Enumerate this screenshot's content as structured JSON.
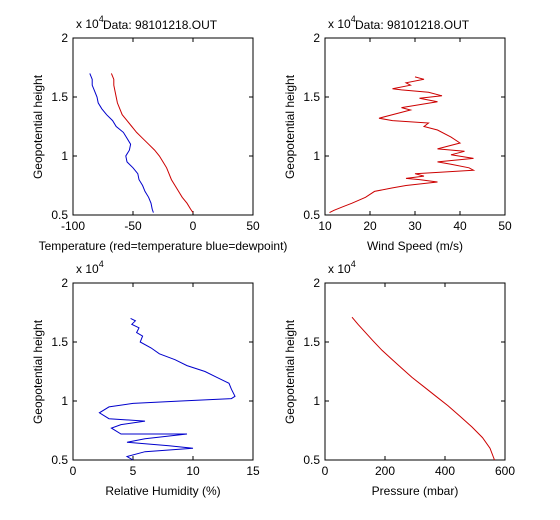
{
  "chart_data": [
    {
      "type": "line",
      "title": "Data: 98101218.OUT",
      "xlabel": "Temperature (red=temperature blue=dewpoint)",
      "ylabel": "Geopotential height",
      "y_multiplier": "x 10",
      "y_exponent": "4",
      "xlim": [
        -100,
        50
      ],
      "ylim": [
        0.5,
        2
      ],
      "xticks": [
        "-100",
        "-50",
        "0",
        "50"
      ],
      "yticks": [
        "0.5",
        "1",
        "1.5",
        "2"
      ],
      "grid": false,
      "series": [
        {
          "color": "#cc0000",
          "points": [
            [
              -68,
              1.7
            ],
            [
              -66,
              1.65
            ],
            [
              -66,
              1.6
            ],
            [
              -65,
              1.55
            ],
            [
              -64,
              1.5
            ],
            [
              -63,
              1.45
            ],
            [
              -61,
              1.4
            ],
            [
              -59,
              1.35
            ],
            [
              -55,
              1.3
            ],
            [
              -51,
              1.25
            ],
            [
              -47,
              1.2
            ],
            [
              -42,
              1.15
            ],
            [
              -37,
              1.1
            ],
            [
              -32,
              1.05
            ],
            [
              -28,
              1.0
            ],
            [
              -25,
              0.95
            ],
            [
              -22,
              0.9
            ],
            [
              -20,
              0.85
            ],
            [
              -18,
              0.8
            ],
            [
              -15,
              0.75
            ],
            [
              -12,
              0.7
            ],
            [
              -9,
              0.65
            ],
            [
              -5,
              0.6
            ],
            [
              -2,
              0.55
            ],
            [
              0,
              0.52
            ]
          ]
        },
        {
          "color": "#0000cc",
          "points": [
            [
              -86,
              1.7
            ],
            [
              -84,
              1.65
            ],
            [
              -84,
              1.6
            ],
            [
              -82,
              1.55
            ],
            [
              -80,
              1.5
            ],
            [
              -79,
              1.45
            ],
            [
              -76,
              1.4
            ],
            [
              -72,
              1.35
            ],
            [
              -67,
              1.3
            ],
            [
              -64,
              1.25
            ],
            [
              -58,
              1.2
            ],
            [
              -55,
              1.15
            ],
            [
              -52,
              1.1
            ],
            [
              -53,
              1.05
            ],
            [
              -56,
              1.0
            ],
            [
              -55,
              0.95
            ],
            [
              -50,
              0.9
            ],
            [
              -46,
              0.85
            ],
            [
              -45,
              0.8
            ],
            [
              -42,
              0.75
            ],
            [
              -40,
              0.7
            ],
            [
              -37,
              0.65
            ],
            [
              -35,
              0.6
            ],
            [
              -34,
              0.55
            ],
            [
              -33,
              0.52
            ]
          ]
        }
      ]
    },
    {
      "type": "line",
      "title": "Data: 98101218.OUT",
      "xlabel": "Wind Speed (m/s)",
      "ylabel": "Geopotential height",
      "y_multiplier": "x 10",
      "y_exponent": "4",
      "xlim": [
        10,
        50
      ],
      "ylim": [
        0.5,
        2
      ],
      "xticks": [
        "10",
        "20",
        "30",
        "40",
        "50"
      ],
      "yticks": [
        "0.5",
        "1",
        "1.5",
        "2"
      ],
      "grid": false,
      "series": [
        {
          "color": "#cc0000",
          "points": [
            [
              30,
              1.67
            ],
            [
              32,
              1.65
            ],
            [
              28,
              1.62
            ],
            [
              29,
              1.6
            ],
            [
              25,
              1.57
            ],
            [
              27,
              1.56
            ],
            [
              33,
              1.54
            ],
            [
              36,
              1.51
            ],
            [
              31,
              1.49
            ],
            [
              35,
              1.46
            ],
            [
              27,
              1.41
            ],
            [
              29,
              1.39
            ],
            [
              22,
              1.32
            ],
            [
              25,
              1.3
            ],
            [
              33,
              1.28
            ],
            [
              32,
              1.25
            ],
            [
              35,
              1.22
            ],
            [
              38,
              1.16
            ],
            [
              40,
              1.11
            ],
            [
              35,
              1.06
            ],
            [
              41,
              1.04
            ],
            [
              38,
              1.01
            ],
            [
              43,
              0.98
            ],
            [
              35,
              0.95
            ],
            [
              38,
              0.93
            ],
            [
              42,
              0.9
            ],
            [
              43,
              0.88
            ],
            [
              30,
              0.85
            ],
            [
              32,
              0.83
            ],
            [
              28,
              0.81
            ],
            [
              31,
              0.8
            ],
            [
              35,
              0.78
            ],
            [
              28,
              0.75
            ],
            [
              25,
              0.73
            ],
            [
              21,
              0.7
            ],
            [
              19,
              0.65
            ],
            [
              16,
              0.6
            ],
            [
              14,
              0.57
            ],
            [
              12,
              0.54
            ],
            [
              11,
              0.52
            ]
          ]
        }
      ]
    },
    {
      "type": "line",
      "title": "",
      "xlabel": "Relative Humidity (%)",
      "ylabel": "Geopotential height",
      "y_multiplier": "x 10",
      "y_exponent": "4",
      "xlim": [
        0,
        15
      ],
      "ylim": [
        0.5,
        2
      ],
      "xticks": [
        "0",
        "5",
        "10",
        "15"
      ],
      "yticks": [
        "0.5",
        "1",
        "1.5",
        "2"
      ],
      "grid": false,
      "series": [
        {
          "color": "#0000cc",
          "points": [
            [
              4.8,
              1.7
            ],
            [
              5.2,
              1.68
            ],
            [
              4.9,
              1.65
            ],
            [
              5.5,
              1.62
            ],
            [
              5.3,
              1.58
            ],
            [
              5.8,
              1.55
            ],
            [
              5.6,
              1.5
            ],
            [
              6.5,
              1.45
            ],
            [
              7.2,
              1.4
            ],
            [
              8.5,
              1.35
            ],
            [
              9.5,
              1.3
            ],
            [
              11,
              1.25
            ],
            [
              12,
              1.2
            ],
            [
              13,
              1.15
            ],
            [
              13.2,
              1.1
            ],
            [
              13.5,
              1.04
            ],
            [
              13.2,
              1.02
            ],
            [
              9,
              1.0
            ],
            [
              5,
              0.98
            ],
            [
              3,
              0.95
            ],
            [
              2.2,
              0.9
            ],
            [
              3,
              0.85
            ],
            [
              6,
              0.83
            ],
            [
              4,
              0.8
            ],
            [
              3.2,
              0.77
            ],
            [
              4,
              0.72
            ],
            [
              9.5,
              0.72
            ],
            [
              6,
              0.68
            ],
            [
              4.5,
              0.65
            ],
            [
              8,
              0.62
            ],
            [
              10,
              0.6
            ],
            [
              6,
              0.57
            ],
            [
              4.5,
              0.53
            ],
            [
              5,
              0.5
            ]
          ]
        }
      ]
    },
    {
      "type": "line",
      "title": "",
      "xlabel": "Pressure (mbar)",
      "ylabel": "Geopotential height",
      "y_multiplier": "x 10",
      "y_exponent": "4",
      "xlim": [
        0,
        600
      ],
      "ylim": [
        0.5,
        2
      ],
      "xticks": [
        "0",
        "200",
        "400",
        "600"
      ],
      "yticks": [
        "0.5",
        "1",
        "1.5",
        "2"
      ],
      "grid": false,
      "series": [
        {
          "color": "#cc0000",
          "points": [
            [
              90,
              1.71
            ],
            [
              110,
              1.65
            ],
            [
              135,
              1.58
            ],
            [
              160,
              1.51
            ],
            [
              190,
              1.43
            ],
            [
              220,
              1.36
            ],
            [
              255,
              1.28
            ],
            [
              290,
              1.2
            ],
            [
              330,
              1.12
            ],
            [
              370,
              1.04
            ],
            [
              410,
              0.96
            ],
            [
              450,
              0.87
            ],
            [
              490,
              0.78
            ],
            [
              525,
              0.69
            ],
            [
              550,
              0.6
            ],
            [
              565,
              0.5
            ]
          ]
        }
      ]
    }
  ]
}
